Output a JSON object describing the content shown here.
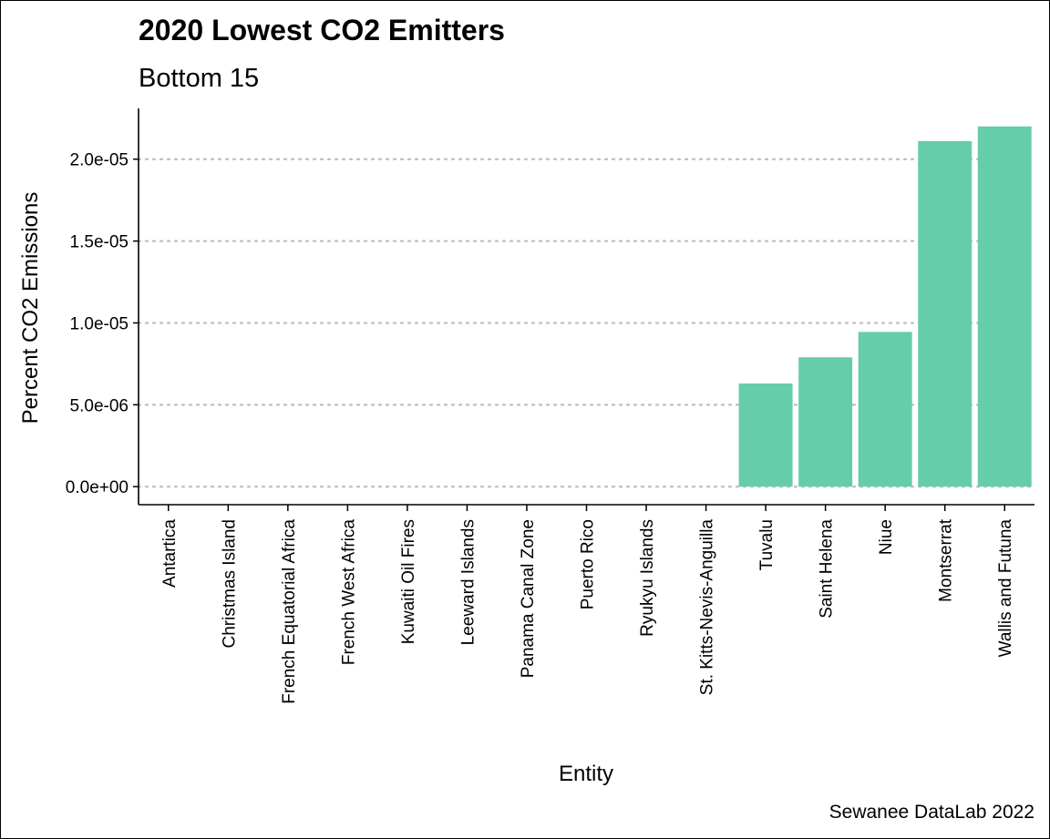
{
  "chart_data": {
    "type": "bar",
    "title": "2020 Lowest CO2 Emitters",
    "subtitle": "Bottom 15",
    "xlabel": "Entity",
    "ylabel": "Percent CO2 Emissions",
    "caption": "Sewanee DataLab 2022",
    "categories": [
      "Antartica",
      "Christmas Island",
      "French Equatorial Africa",
      "French West Africa",
      "Kuwaiti Oil Fires",
      "Leeward Islands",
      "Panama Canal Zone",
      "Puerto Rico",
      "Ryukyu Islands",
      "St. Kitts-Nevis-Anguilla",
      "Tuvalu",
      "Saint Helena",
      "Niue",
      "Montserrat",
      "Wallis and Futuna"
    ],
    "values": [
      0,
      0,
      0,
      0,
      0,
      0,
      0,
      0,
      0,
      0,
      6.3e-06,
      7.9e-06,
      9.45e-06,
      2.11e-05,
      2.2e-05
    ],
    "yticks": [
      0,
      5e-06,
      1e-05,
      1.5e-05,
      2e-05
    ],
    "ytick_labels": [
      "0.0e+00",
      "5.0e-06",
      "1.0e-05",
      "1.5e-05",
      "2.0e-05"
    ],
    "ylim": [
      -1.1e-06,
      2.31e-05
    ],
    "bar_color": "#66cdaa",
    "grid": "horizontal dotted"
  }
}
